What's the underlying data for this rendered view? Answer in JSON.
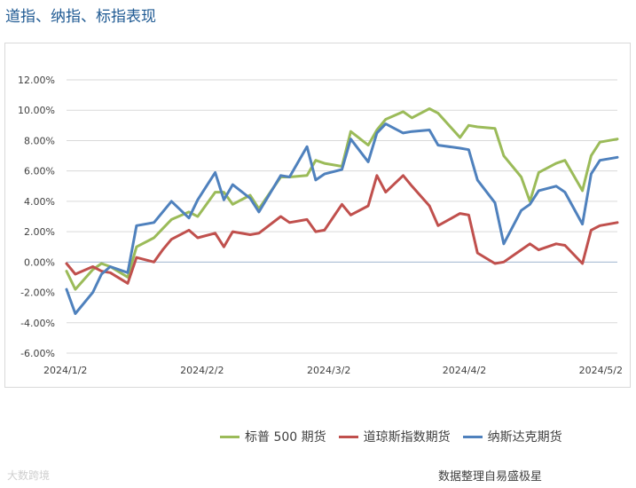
{
  "title": "道指、纳指、标指表现",
  "source": "数据整理自易盛极星",
  "watermark": "大数跨境",
  "chart_data": {
    "type": "line",
    "title": "道指、纳指、标指表现",
    "xlabel": "",
    "ylabel": "",
    "ylim": [
      -6,
      12
    ],
    "yticks": [
      "-6.00%",
      "-4.00%",
      "-2.00%",
      "0.00%",
      "2.00%",
      "4.00%",
      "6.00%",
      "8.00%",
      "10.00%",
      "12.00%"
    ],
    "x_ticks": [
      "2024/1/2",
      "2024/2/2",
      "2024/3/2",
      "2024/4/2",
      "2024/5/2"
    ],
    "x": [
      "2024/1/2",
      "2024/1/4",
      "2024/1/8",
      "2024/1/10",
      "2024/1/12",
      "2024/1/16",
      "2024/1/18",
      "2024/1/22",
      "2024/1/24",
      "2024/1/26",
      "2024/1/30",
      "2024/2/1",
      "2024/2/5",
      "2024/2/7",
      "2024/2/9",
      "2024/2/13",
      "2024/2/15",
      "2024/2/20",
      "2024/2/22",
      "2024/2/26",
      "2024/2/28",
      "2024/3/1",
      "2024/3/5",
      "2024/3/7",
      "2024/3/11",
      "2024/3/13",
      "2024/3/15",
      "2024/3/19",
      "2024/3/21",
      "2024/3/25",
      "2024/3/27",
      "2024/4/1",
      "2024/4/3",
      "2024/4/5",
      "2024/4/9",
      "2024/4/11",
      "2024/4/15",
      "2024/4/17",
      "2024/4/19",
      "2024/4/23",
      "2024/4/25",
      "2024/4/29",
      "2024/5/1",
      "2024/5/3",
      "2024/5/7"
    ],
    "grid": true,
    "legend_position": "bottom",
    "series": [
      {
        "name": "标普 500 期货",
        "color": "#9bbb59",
        "values": [
          -0.6,
          -1.8,
          -0.5,
          -0.1,
          -0.3,
          -1.0,
          1.0,
          1.6,
          2.2,
          2.8,
          3.3,
          3.0,
          4.6,
          4.6,
          3.8,
          4.4,
          3.5,
          5.6,
          5.6,
          5.7,
          6.7,
          6.5,
          6.3,
          8.6,
          7.7,
          8.7,
          9.4,
          9.9,
          9.5,
          10.1,
          9.8,
          8.2,
          9.0,
          8.9,
          8.8,
          7.0,
          5.6,
          4.0,
          5.9,
          6.5,
          6.7,
          4.7,
          7.0,
          7.9,
          8.1
        ]
      },
      {
        "name": "道琼斯指数期货",
        "color": "#c0504d",
        "values": [
          -0.1,
          -0.8,
          -0.3,
          -0.6,
          -0.7,
          -1.4,
          0.3,
          0.0,
          0.8,
          1.5,
          2.1,
          1.6,
          1.9,
          1.0,
          2.0,
          1.8,
          1.9,
          3.0,
          2.6,
          2.8,
          2.0,
          2.1,
          3.8,
          3.1,
          3.7,
          5.7,
          4.6,
          5.7,
          5.0,
          3.7,
          2.4,
          3.2,
          3.1,
          0.6,
          -0.1,
          0.0,
          0.8,
          1.2,
          0.8,
          1.2,
          1.1,
          -0.1,
          2.1,
          2.4,
          2.6
        ]
      },
      {
        "name": "纳斯达克期货",
        "color": "#4f81bd",
        "values": [
          -1.8,
          -3.4,
          -2.0,
          -0.8,
          -0.3,
          -0.7,
          2.4,
          2.6,
          3.3,
          4.0,
          2.9,
          4.1,
          5.9,
          4.1,
          5.1,
          4.2,
          3.3,
          5.7,
          5.6,
          7.6,
          5.4,
          5.8,
          6.1,
          8.1,
          6.6,
          8.5,
          9.1,
          8.5,
          8.6,
          8.7,
          7.7,
          7.5,
          7.4,
          5.4,
          3.9,
          1.2,
          3.4,
          3.8,
          4.7,
          5.0,
          4.6,
          2.5,
          5.8,
          6.7,
          6.9
        ]
      }
    ]
  }
}
